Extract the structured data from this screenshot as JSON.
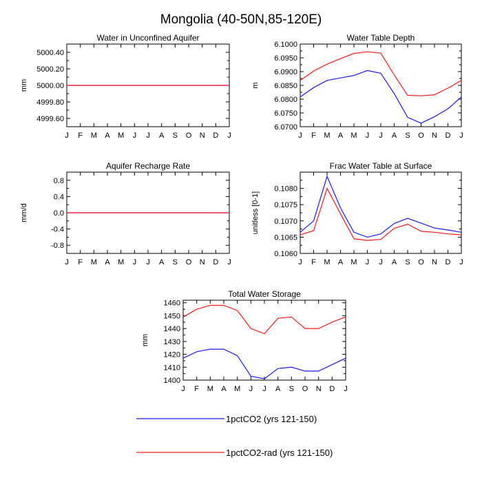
{
  "figure_title": "Mongolia (40-50N,85-120E)",
  "months": [
    "J",
    "F",
    "M",
    "A",
    "M",
    "J",
    "J",
    "A",
    "S",
    "O",
    "N",
    "D",
    "J"
  ],
  "colors": {
    "1pctCO2": "#1a1aff",
    "1pctCO2-rad": "#ff1a1a"
  },
  "legend": [
    {
      "label": "1pctCO2 (yrs 121-150)",
      "color": "#1a1aff"
    },
    {
      "label": "1pctCO2-rad (yrs 121-150)",
      "color": "#ff1a1a"
    }
  ],
  "chart_data": [
    {
      "type": "line",
      "title": "Water in Unconfined Aquifer",
      "ylabel": "mm",
      "ylim": [
        4999.5,
        5000.5
      ],
      "yticks": [
        4999.6,
        4999.8,
        5000.0,
        5000.2,
        5000.4
      ],
      "ytick_labels": [
        "4999.60",
        "4999.80",
        "5000.00",
        "5000.20",
        "5000.40"
      ],
      "series": [
        {
          "values": [
            5000,
            5000,
            5000,
            5000,
            5000,
            5000,
            5000,
            5000,
            5000,
            5000,
            5000,
            5000,
            5000
          ],
          "color": "#1a1aff"
        },
        {
          "values": [
            5000,
            5000,
            5000,
            5000,
            5000,
            5000,
            5000,
            5000,
            5000,
            5000,
            5000,
            5000,
            5000
          ],
          "color": "#ff1a1a"
        }
      ]
    },
    {
      "type": "line",
      "title": "Water Table Depth",
      "ylabel": "m",
      "ylim": [
        6.07,
        6.1
      ],
      "yticks": [
        6.07,
        6.075,
        6.08,
        6.085,
        6.09,
        6.095,
        6.1
      ],
      "ytick_labels": [
        "6.0700",
        "6.0750",
        "6.0800",
        "6.0850",
        "6.0900",
        "6.0950",
        "6.1000"
      ],
      "series": [
        {
          "values": [
            6.0808,
            6.0842,
            6.0868,
            6.0877,
            6.0886,
            6.0904,
            6.0894,
            6.082,
            6.0734,
            6.0713,
            6.0736,
            6.0765,
            6.0808
          ],
          "color": "#1a1aff"
        },
        {
          "values": [
            6.0868,
            6.0902,
            6.0927,
            6.0947,
            6.0966,
            6.0972,
            6.0967,
            6.0888,
            6.0814,
            6.0812,
            6.0816,
            6.084,
            6.0868
          ],
          "color": "#ff1a1a"
        }
      ]
    },
    {
      "type": "line",
      "title": "Aquifer Recharge Rate",
      "ylabel": "mm/d",
      "ylim": [
        -1.0,
        1.0
      ],
      "yticks": [
        -0.8,
        -0.4,
        0.0,
        0.4,
        0.8
      ],
      "ytick_labels": [
        "-0.8",
        "-0.4",
        "0.0",
        "0.4",
        "0.8"
      ],
      "series": [
        {
          "values": [
            0,
            0,
            0,
            0,
            0,
            0,
            0,
            0,
            0,
            0,
            0,
            0,
            0
          ],
          "color": "#1a1aff"
        },
        {
          "values": [
            0,
            0,
            0,
            0,
            0,
            0,
            0,
            0,
            0,
            0,
            0,
            0,
            0
          ],
          "color": "#ff1a1a"
        }
      ]
    },
    {
      "type": "line",
      "title": "Frac Water Table at Surface",
      "ylabel": "unitless [0-1]",
      "ylim": [
        0.106,
        0.1085
      ],
      "yticks": [
        0.106,
        0.1065,
        0.107,
        0.1075,
        0.108
      ],
      "ytick_labels": [
        "0.1060",
        "0.1065",
        "0.1070",
        "0.1075",
        "0.1080"
      ],
      "series": [
        {
          "values": [
            0.10665,
            0.107,
            0.10837,
            0.1074,
            0.10665,
            0.1065,
            0.1066,
            0.10692,
            0.10708,
            0.10693,
            0.10678,
            0.10672,
            0.10665
          ],
          "color": "#1a1aff"
        },
        {
          "values": [
            0.10657,
            0.1067,
            0.108,
            0.10722,
            0.10645,
            0.1064,
            0.10643,
            0.10677,
            0.1069,
            0.10668,
            0.10665,
            0.1066,
            0.10657
          ],
          "color": "#ff1a1a"
        }
      ]
    },
    {
      "type": "line",
      "title": "Total Water Storage",
      "ylabel": "mm",
      "ylim": [
        1400,
        1462
      ],
      "yticks": [
        1400,
        1410,
        1420,
        1430,
        1440,
        1450,
        1460
      ],
      "ytick_labels": [
        "1400",
        "1410",
        "1420",
        "1430",
        "1440",
        "1450",
        "1460"
      ],
      "series": [
        {
          "values": [
            1417,
            1422,
            1424,
            1424,
            1419,
            1403,
            1401,
            1409,
            1410,
            1407,
            1407,
            1412,
            1417
          ],
          "color": "#1a1aff"
        },
        {
          "values": [
            1449,
            1455,
            1458,
            1458,
            1454,
            1440,
            1436,
            1448,
            1449,
            1440,
            1440,
            1445,
            1449
          ],
          "color": "#ff1a1a"
        }
      ]
    }
  ]
}
